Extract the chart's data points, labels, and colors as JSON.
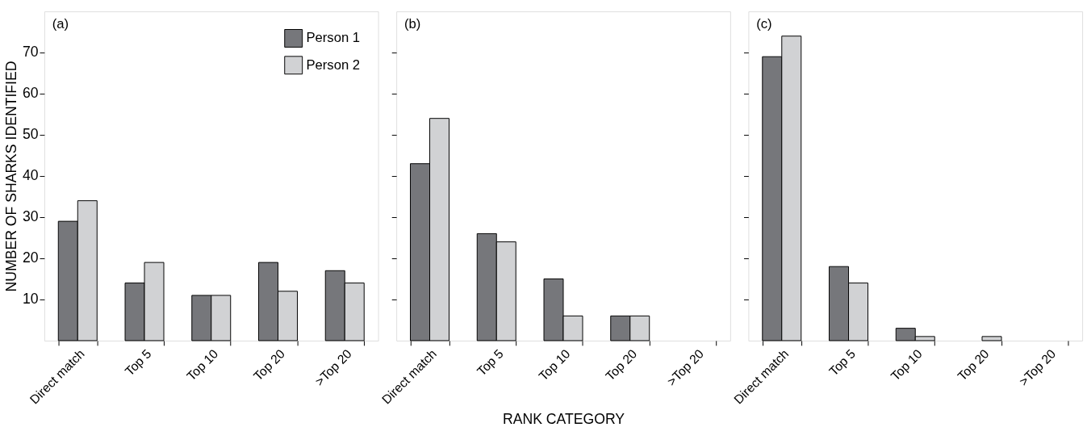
{
  "chart_data": [
    {
      "type": "bar",
      "title": "(a)",
      "ylabel": "NUMBER OF SHARKS IDENTIFIED",
      "categories": [
        "Direct match",
        "Top 5",
        "Top 10",
        "Top 20",
        ">Top 20"
      ],
      "series": [
        {
          "name": "Person 1",
          "color": "#76777b",
          "values": [
            29,
            14,
            11,
            19,
            17
          ]
        },
        {
          "name": "Person 2",
          "color": "#d1d2d4",
          "values": [
            34,
            19,
            11,
            12,
            14
          ]
        }
      ],
      "ylim": [
        0,
        80
      ],
      "yticks": [
        10,
        20,
        30,
        40,
        50,
        60,
        70
      ],
      "legend": "top right",
      "grid": false
    },
    {
      "type": "bar",
      "title": "(b)",
      "xlabel": "RANK CATEGORY",
      "categories": [
        "Direct match",
        "Top 5",
        "Top 10",
        "Top 20",
        ">Top 20"
      ],
      "series": [
        {
          "color": "#76777b",
          "values": [
            43,
            26,
            15,
            6,
            0
          ]
        },
        {
          "color": "#d1d2d4",
          "values": [
            54,
            24,
            6,
            6,
            0
          ]
        }
      ],
      "ylim": [
        0,
        80
      ],
      "yticks": [
        10,
        20,
        30,
        40,
        50,
        60,
        70
      ],
      "tick_labels": "x",
      "grid": false
    },
    {
      "type": "bar",
      "title": "(c)",
      "categories": [
        "Direct match",
        "Top 5",
        "Top 10",
        "Top 20",
        ">Top 20"
      ],
      "series": [
        {
          "color": "#76777b",
          "values": [
            69,
            18,
            3,
            0,
            0
          ]
        },
        {
          "color": "#d1d2d4",
          "values": [
            74,
            14,
            1,
            1,
            0
          ]
        }
      ],
      "ylim": [
        0,
        80
      ],
      "yticks": [
        10,
        20,
        30,
        40,
        50,
        60,
        70
      ],
      "tick_labels": "x",
      "grid": false
    }
  ]
}
